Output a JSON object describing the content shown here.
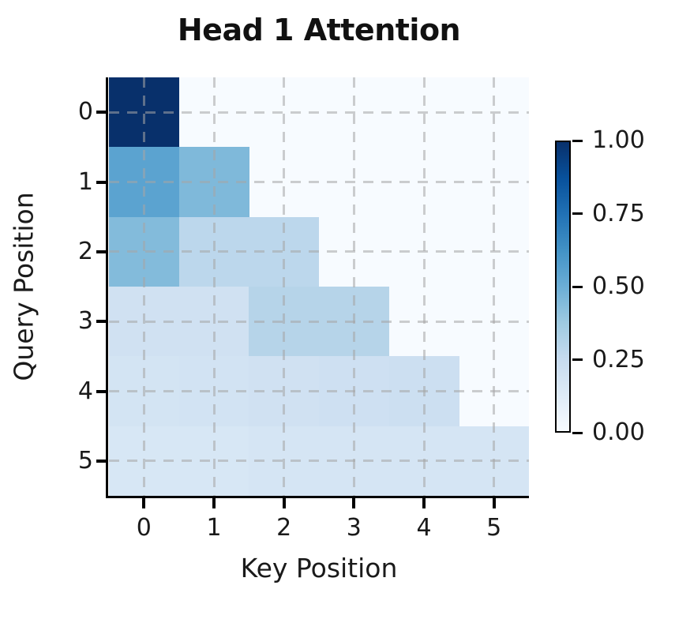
{
  "figure": {
    "background": "#ffffff",
    "text_color": "#1a1a1a"
  },
  "chart_data": {
    "type": "heatmap",
    "title": "Head 1 Attention",
    "xlabel": "Key Position",
    "ylabel": "Query Position",
    "x_tick_labels": [
      "0",
      "1",
      "2",
      "3",
      "4",
      "5"
    ],
    "y_tick_labels": [
      "0",
      "1",
      "2",
      "3",
      "4",
      "5"
    ],
    "rows": 6,
    "cols": 6,
    "mask": "strict upper triangle masked (causal attention); masked cells rendered at value 0",
    "values": [
      [
        1.0,
        null,
        null,
        null,
        null,
        null
      ],
      [
        0.55,
        0.45,
        null,
        null,
        null,
        null
      ],
      [
        0.44,
        0.28,
        0.28,
        null,
        null,
        null
      ],
      [
        0.2,
        0.2,
        0.3,
        0.3,
        null,
        null
      ],
      [
        0.18,
        0.19,
        0.2,
        0.21,
        0.22,
        null
      ],
      [
        0.16,
        0.16,
        0.17,
        0.17,
        0.17,
        0.17
      ]
    ],
    "value_range": [
      0,
      1
    ],
    "colormap": "Blues",
    "colormap_stops": [
      "#f7fbff",
      "#deebf7",
      "#c6dbef",
      "#9ecae1",
      "#6baed6",
      "#4292c6",
      "#2171b5",
      "#08519c",
      "#08306b"
    ],
    "grid": "dashed gray gridlines at tick centers, drawn over cells",
    "legend_position": "none",
    "colorbar": {
      "orientation": "vertical",
      "tick_labels": [
        "1.00",
        "0.75",
        "0.50",
        "0.25",
        "0.00"
      ],
      "tick_values": [
        1.0,
        0.75,
        0.5,
        0.25,
        0.0
      ]
    }
  }
}
